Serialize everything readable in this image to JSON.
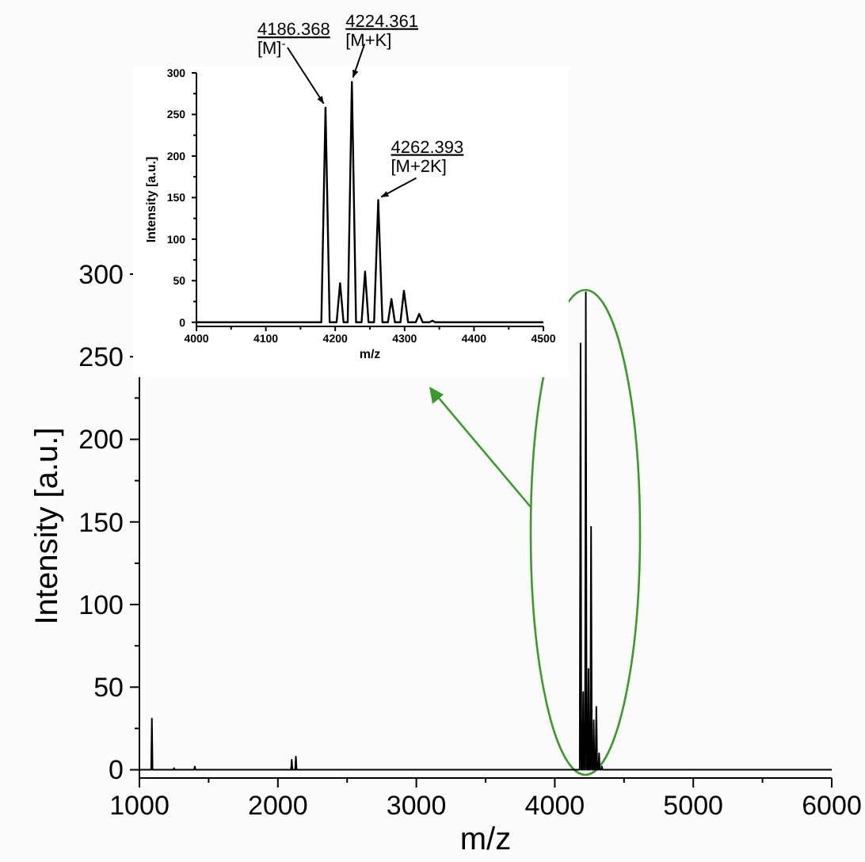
{
  "chart_data": [
    {
      "type": "line",
      "xlabel": "m/z",
      "ylabel": "Intensity [a.u.]",
      "xlim": [
        1000,
        6000
      ],
      "ylim": [
        -5,
        300
      ],
      "xticks": [
        1000,
        {
          "value": 1500,
          "label": null
        },
        2000,
        {
          "value": 2500,
          "label": null
        },
        3000,
        {
          "value": 3500,
          "label": null
        },
        4000,
        {
          "value": 4500,
          "label": null
        },
        5000,
        {
          "value": 5500,
          "label": null
        },
        6000
      ],
      "yticks": [
        0,
        {
          "value": 25,
          "label": null
        },
        50,
        {
          "value": 75,
          "label": null
        },
        100,
        {
          "value": 125,
          "label": null
        },
        150,
        {
          "value": 175,
          "label": null
        },
        200,
        {
          "value": 225,
          "label": null
        },
        250,
        {
          "value": 275,
          "label": null
        },
        300
      ],
      "grid": false,
      "marker": "none",
      "line_style": "solid",
      "series": [
        {
          "color": "#000000",
          "x": [
            1000,
            1085,
            1090,
            1095,
            1245,
            1250,
            1255,
            1395,
            1400,
            1405,
            2095,
            2100,
            2105,
            2125,
            2130,
            2135,
            4180,
            4186,
            4192,
            4200,
            4205,
            4210,
            4218,
            4224,
            4230,
            4238,
            4243,
            4248,
            4256,
            4262,
            4268,
            4276,
            4281,
            4286,
            4294,
            4300,
            4306,
            4315,
            4320,
            4325,
            4335,
            4340,
            4345,
            6000
          ],
          "values": [
            0,
            0,
            31,
            0,
            0,
            1,
            0,
            0,
            2,
            0,
            0,
            6,
            0,
            0,
            8,
            0,
            0,
            258,
            0,
            0,
            47,
            0,
            0,
            289,
            0,
            0,
            61,
            0,
            0,
            147,
            0,
            0,
            30,
            0,
            0,
            38,
            0,
            0,
            10,
            0,
            0,
            2,
            0,
            0
          ]
        }
      ]
    },
    {
      "type": "line",
      "xlabel": "m/z",
      "ylabel": "Intensity [a.u.]",
      "xlim": [
        4000,
        4500
      ],
      "ylim": [
        -5,
        300
      ],
      "xticks": [
        4000,
        {
          "value": 4050,
          "label": null
        },
        4100,
        {
          "value": 4150,
          "label": null
        },
        4200,
        {
          "value": 4250,
          "label": null
        },
        4300,
        {
          "value": 4350,
          "label": null
        },
        4400,
        {
          "value": 4450,
          "label": null
        },
        4500
      ],
      "yticks": [
        0,
        {
          "value": 25,
          "label": null
        },
        50,
        {
          "value": 75,
          "label": null
        },
        100,
        {
          "value": 125,
          "label": null
        },
        150,
        {
          "value": 175,
          "label": null
        },
        200,
        {
          "value": 225,
          "label": null
        },
        250,
        {
          "value": 275,
          "label": null
        },
        300
      ],
      "grid": false,
      "marker": "none",
      "line_style": "solid",
      "series": [
        {
          "color": "#000000",
          "x": [
            4000,
            4180,
            4186,
            4192,
            4202,
            4207,
            4212,
            4218,
            4224,
            4230,
            4238,
            4243,
            4248,
            4256,
            4262,
            4268,
            4276,
            4281,
            4286,
            4294,
            4299,
            4305,
            4316,
            4321,
            4326,
            4336,
            4340,
            4344,
            4500
          ],
          "values": [
            0,
            0,
            258,
            0,
            0,
            47,
            0,
            0,
            289,
            0,
            0,
            61,
            0,
            0,
            147,
            0,
            0,
            28,
            0,
            0,
            38,
            0,
            0,
            10,
            0,
            0,
            2,
            0,
            0
          ]
        }
      ],
      "annotations": [
        {
          "text": "4186.368\n[M]$^{-}$",
          "x": 4186,
          "y": 258
        },
        {
          "text": "4224.361\n[M+K]",
          "x": 4224,
          "y": 289
        },
        {
          "text": "4262.393\n[M+2K]",
          "x": 4262,
          "y": 147
        }
      ]
    }
  ]
}
